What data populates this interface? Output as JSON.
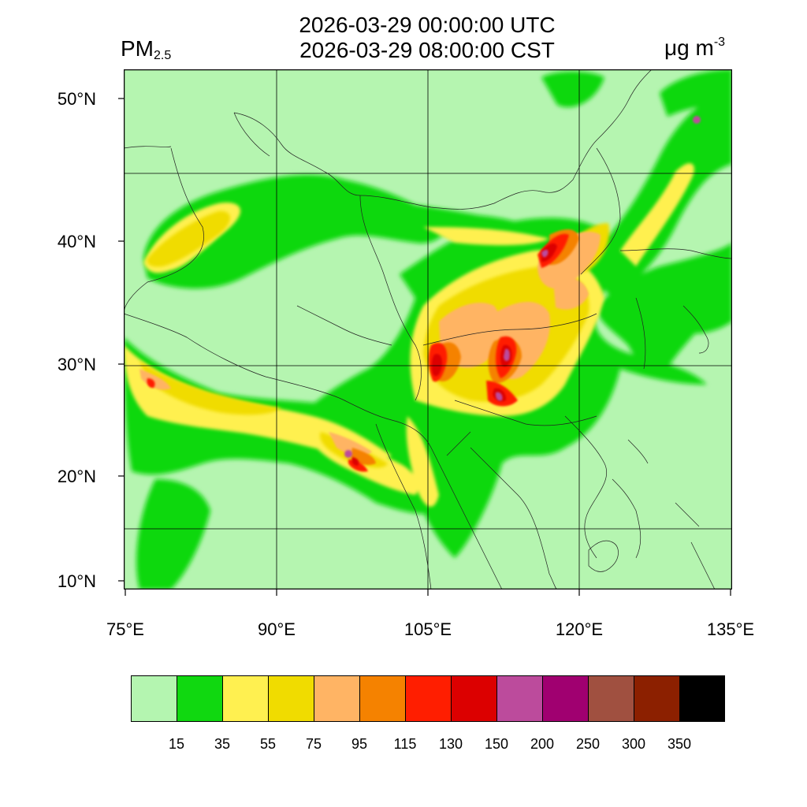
{
  "title": {
    "line1": "2026-03-29 00:00:00 UTC",
    "line2": "2026-03-29 08:00:00 CST"
  },
  "variable": {
    "name": "PM",
    "subscript": "2.5"
  },
  "units": {
    "base": "μg m",
    "exponent": "-3"
  },
  "axes": {
    "lat_ticks": [
      "50°N",
      "40°N",
      "30°N",
      "20°N",
      "10°N"
    ],
    "lon_ticks": [
      "75°E",
      "90°E",
      "105°E",
      "120°E",
      "135°E"
    ]
  },
  "map": {
    "region": "East/South Asia",
    "background_color": "#b5f5b0",
    "high_concentration_areas": [
      "Sichuan Basin",
      "Hubei/Hunan",
      "Hebei/Beijing",
      "Myanmar",
      "Northern India"
    ]
  },
  "colorbar": {
    "levels": [
      "15",
      "35",
      "55",
      "75",
      "95",
      "115",
      "130",
      "150",
      "200",
      "250",
      "300",
      "350"
    ],
    "colors": [
      "#b4f5b0",
      "#10d810",
      "#fff050",
      "#f0dc00",
      "#ffb464",
      "#f58200",
      "#ff1e00",
      "#dc0000",
      "#bc4b9c",
      "#a00070",
      "#a05040",
      "#8c2000",
      "#000000"
    ]
  }
}
